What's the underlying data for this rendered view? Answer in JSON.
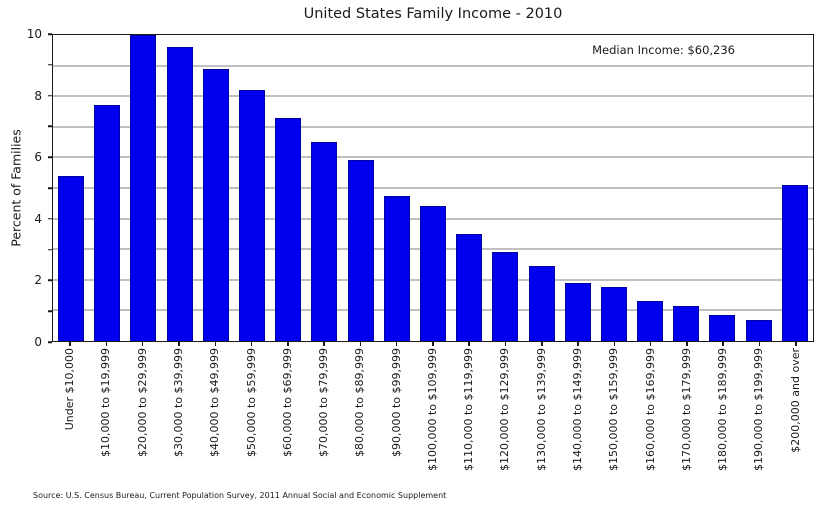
{
  "title": "United States Family Income - 2010",
  "annotation": "Median Income: $60,236",
  "ylabel": "Percent of Families",
  "source": "Source: U.S. Census Bureau, Current Population Survey, 2011 Annual Social and Economic Supplement",
  "colors": {
    "bar_fill": "#0000ee",
    "bar_edge": "#0000a0",
    "grid": "#808080",
    "spine": "#1a1a1a"
  },
  "chart_data": {
    "type": "bar",
    "title": "United States Family Income - 2010",
    "xlabel": "",
    "ylabel": "Percent of Families",
    "ylim": [
      0,
      10
    ],
    "grid": "on",
    "grid_interval": 1,
    "yticks_labeled": [
      0,
      2,
      4,
      6,
      8,
      10
    ],
    "annotation": "Median Income: $60,236",
    "categories": [
      "Under $10,000",
      "$10,000 to $19,999",
      "$20,000 to $29,999",
      "$30,000 to $39,999",
      "$40,000 to $49,999",
      "$50,000 to $59,999",
      "$60,000 to $69,999",
      "$70,000 to $79,999",
      "$80,000 to $89,999",
      "$90,000 to $99,999",
      "$100,000 to $109,999",
      "$110,000 to $119,999",
      "$120,000 to $129,999",
      "$130,000 to $139,999",
      "$140,000 to $149,999",
      "$150,000 to $159,999",
      "$160,000 to $169,999",
      "$170,000 to $179,999",
      "$180,000 to $189,999",
      "$190,000 to $199,999",
      "$200,000 and over"
    ],
    "values": [
      5.4,
      7.7,
      10.0,
      9.6,
      8.9,
      8.2,
      7.3,
      6.5,
      5.9,
      4.75,
      4.4,
      3.5,
      2.9,
      2.45,
      1.9,
      1.75,
      1.3,
      1.15,
      0.85,
      0.7,
      5.1
    ]
  }
}
